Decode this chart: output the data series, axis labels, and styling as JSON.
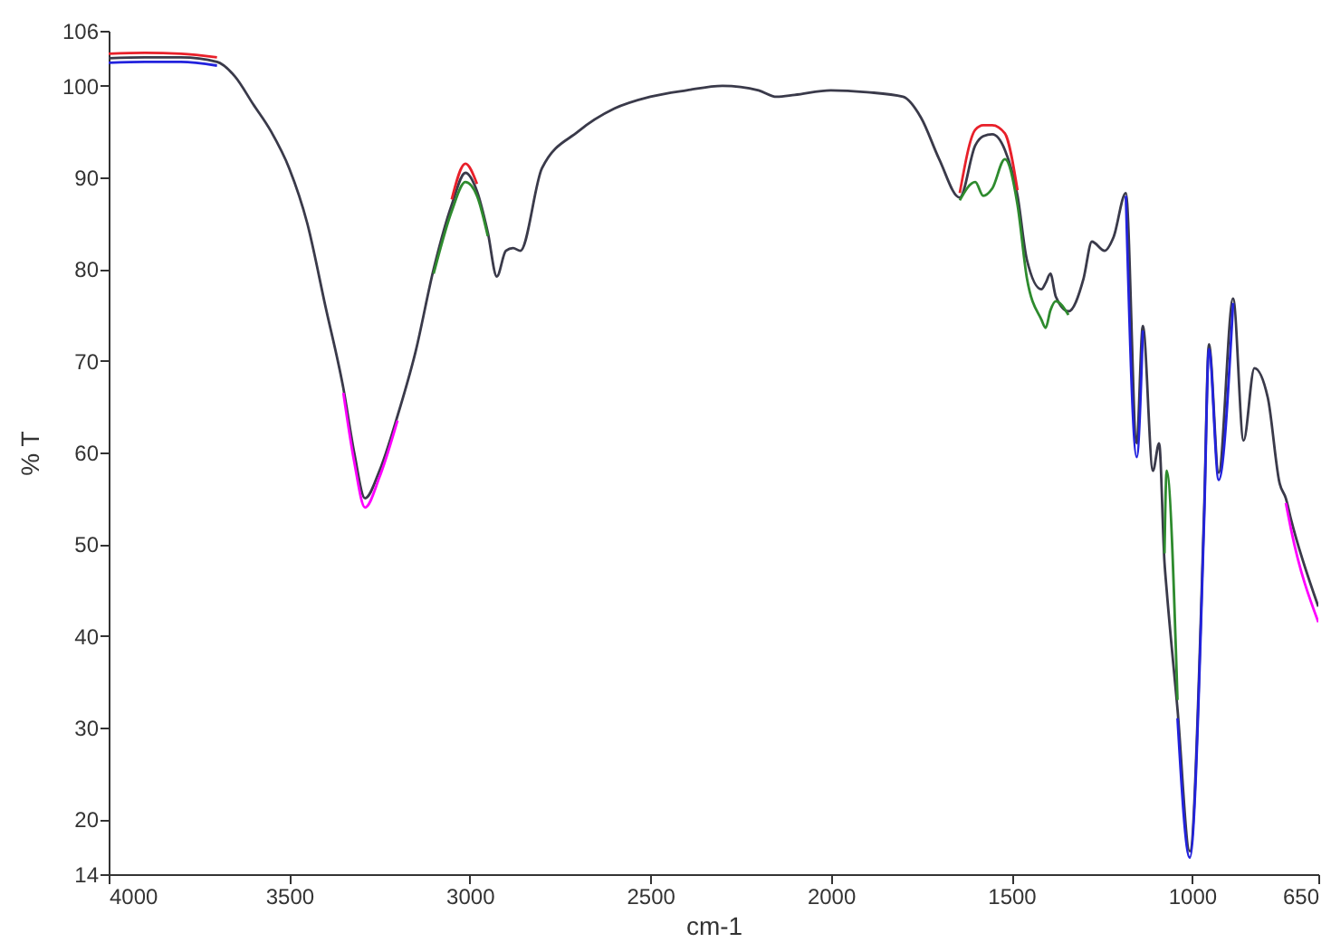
{
  "chart_data": {
    "type": "line",
    "xlabel": "cm-1",
    "ylabel": "% T",
    "xlim": [
      4000,
      650
    ],
    "ylim": [
      14,
      106
    ],
    "xticks": [
      4000,
      3500,
      3000,
      2500,
      2000,
      1500,
      1000,
      650
    ],
    "yticks": [
      14,
      20,
      30,
      40,
      50,
      60,
      70,
      80,
      90,
      100,
      106
    ],
    "x": [
      4000,
      3900,
      3800,
      3700,
      3650,
      3600,
      3550,
      3500,
      3450,
      3400,
      3350,
      3320,
      3290,
      3250,
      3200,
      3150,
      3100,
      3050,
      3012,
      2980,
      2950,
      2925,
      2900,
      2880,
      2860,
      2800,
      2700,
      2600,
      2500,
      2400,
      2300,
      2200,
      2150,
      2100,
      2000,
      1900,
      1800,
      1750,
      1700,
      1643,
      1600,
      1578,
      1553,
      1518,
      1483,
      1457,
      1417,
      1405,
      1392,
      1377,
      1342,
      1300,
      1277,
      1242,
      1217,
      1183,
      1153,
      1136,
      1108,
      1091,
      1076,
      1070,
      1040,
      1006,
      966,
      953,
      926,
      886,
      857,
      827,
      790,
      757,
      740,
      725,
      650
    ],
    "series": [
      {
        "color": "#3a3a4a",
        "values": [
          103,
          103.1,
          103.1,
          102.6,
          101,
          98,
          95,
          91,
          85,
          76,
          67,
          60,
          55,
          58,
          64,
          71,
          80,
          87,
          90.5,
          88.5,
          84,
          79.2,
          82,
          82.3,
          82,
          91,
          95,
          97.5,
          98.8,
          99.5,
          100,
          99.5,
          98.8,
          99,
          99.5,
          99.3,
          98.8,
          96.5,
          92,
          87.8,
          93.5,
          94.5,
          94.7,
          93,
          88,
          81,
          77.8,
          78.5,
          79.5,
          77,
          75.4,
          79,
          83,
          82,
          83.5,
          88.3,
          61,
          73.8,
          58,
          61,
          48,
          45,
          32,
          16.5,
          54,
          71.8,
          57.8,
          76.8,
          61.3,
          69.2,
          66,
          56.6,
          55,
          52.6,
          43.2
        ]
      },
      {
        "color": "#2e8b2e",
        "values": [
          null,
          null,
          null,
          null,
          null,
          null,
          null,
          null,
          null,
          null,
          null,
          null,
          null,
          null,
          null,
          null,
          79.5,
          86.3,
          89.5,
          88,
          83.6,
          null,
          null,
          null,
          null,
          null,
          null,
          null,
          null,
          null,
          null,
          null,
          null,
          null,
          null,
          null,
          null,
          null,
          null,
          87.5,
          89.5,
          88,
          88.8,
          92,
          87,
          79,
          74.5,
          73.6,
          75.5,
          76.5,
          75,
          null,
          null,
          null,
          null,
          null,
          null,
          null,
          null,
          null,
          49,
          58,
          33,
          null,
          null,
          null,
          null,
          null,
          null,
          null,
          null,
          null,
          null,
          null,
          null
        ]
      },
      {
        "color": "#2222dd",
        "values": [
          102.5,
          102.6,
          102.6,
          102.2,
          null,
          null,
          null,
          null,
          null,
          null,
          null,
          null,
          null,
          null,
          null,
          null,
          null,
          null,
          null,
          null,
          null,
          null,
          null,
          null,
          null,
          null,
          null,
          null,
          null,
          null,
          null,
          null,
          null,
          null,
          null,
          null,
          null,
          null,
          null,
          null,
          null,
          null,
          null,
          null,
          null,
          null,
          null,
          null,
          null,
          null,
          null,
          null,
          null,
          null,
          null,
          88,
          59.5,
          73.3,
          null,
          null,
          null,
          null,
          31,
          15.8,
          53,
          71.3,
          57,
          76.3,
          null,
          null,
          null,
          null,
          null,
          null,
          null
        ]
      },
      {
        "color": "#ff00ff",
        "values": [
          null,
          null,
          null,
          null,
          null,
          null,
          null,
          null,
          null,
          null,
          66.5,
          59,
          54,
          57.3,
          63.5,
          null,
          null,
          null,
          null,
          null,
          null,
          null,
          null,
          null,
          null,
          null,
          null,
          null,
          null,
          null,
          null,
          null,
          null,
          null,
          null,
          null,
          null,
          null,
          null,
          null,
          null,
          null,
          null,
          null,
          null,
          null,
          null,
          null,
          null,
          null,
          null,
          null,
          null,
          null,
          null,
          null,
          null,
          null,
          null,
          null,
          null,
          null,
          null,
          null,
          null,
          null,
          null,
          null,
          null,
          null,
          null,
          null,
          54.5,
          51.5,
          41.5
        ]
      },
      {
        "color": "#e8202a",
        "values": [
          103.5,
          103.6,
          103.5,
          103.1,
          null,
          null,
          null,
          null,
          null,
          null,
          null,
          null,
          null,
          null,
          null,
          null,
          null,
          87.6,
          91.5,
          89.3,
          null,
          null,
          null,
          null,
          null,
          null,
          null,
          null,
          null,
          null,
          null,
          null,
          null,
          null,
          null,
          null,
          null,
          null,
          null,
          88.3,
          95.2,
          95.7,
          95.7,
          94.8,
          88.6,
          null,
          null,
          null,
          null,
          null,
          null,
          null,
          null,
          null,
          null,
          null,
          null,
          null,
          null,
          null,
          null,
          null,
          null,
          null,
          null,
          null,
          null,
          null,
          null,
          null,
          null,
          null,
          null,
          null,
          null
        ]
      }
    ]
  }
}
